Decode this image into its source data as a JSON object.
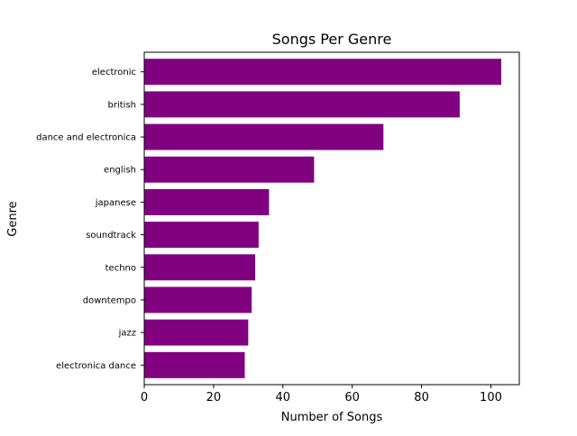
{
  "chart_data": {
    "type": "bar",
    "orientation": "horizontal",
    "title": "Songs Per Genre",
    "xlabel": "Number of Songs",
    "ylabel": "Genre",
    "categories": [
      "electronic",
      "british",
      "dance and electronica",
      "english",
      "japanese",
      "soundtrack",
      "techno",
      "downtempo",
      "jazz",
      "electronica dance"
    ],
    "values": [
      103,
      91,
      69,
      49,
      36,
      33,
      32,
      31,
      30,
      29
    ],
    "xlim": [
      0,
      108.2
    ],
    "xticks": [
      0,
      20,
      40,
      60,
      80,
      100
    ],
    "grid": false,
    "bar_color": "#800080"
  }
}
